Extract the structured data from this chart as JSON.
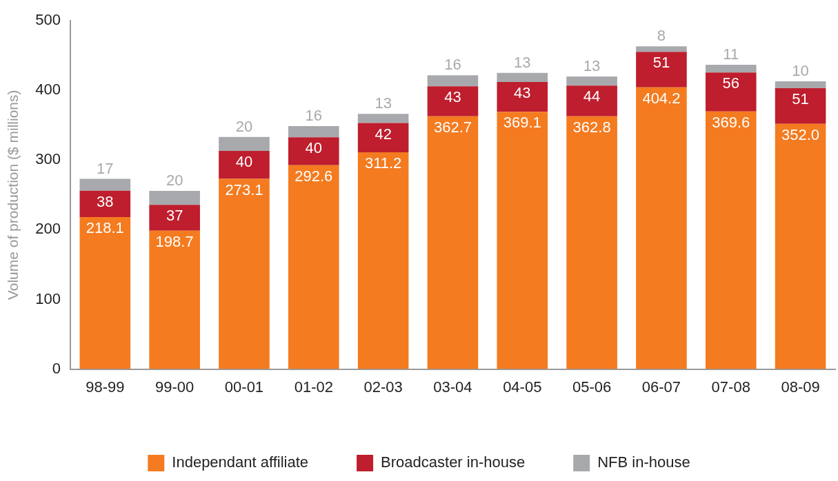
{
  "chart_data": {
    "type": "bar",
    "stacked": true,
    "ylabel": "Volume of production ($ millions)",
    "categories": [
      "98-99",
      "99-00",
      "00-01",
      "01-02",
      "02-03",
      "03-04",
      "04-05",
      "05-06",
      "06-07",
      "07-08",
      "08-09"
    ],
    "series": [
      {
        "name": "Independant affiliate",
        "color": "#f47b20",
        "values": [
          218.1,
          198.7,
          273.1,
          292.6,
          311.2,
          362.7,
          369.1,
          362.8,
          404.2,
          369.6,
          352.0
        ],
        "value_labels": [
          "218.1",
          "198.7",
          "273.1",
          "292.6",
          "311.2",
          "362.7",
          "369.1",
          "362.8",
          "404.2",
          "369.6",
          "352.0"
        ]
      },
      {
        "name": "Broadcaster in-house",
        "color": "#be1e2d",
        "values": [
          38,
          37,
          40,
          40,
          42,
          43,
          43,
          44,
          51,
          56,
          51
        ],
        "value_labels": [
          "38",
          "37",
          "40",
          "40",
          "42",
          "43",
          "43",
          "44",
          "51",
          "56",
          "51"
        ]
      },
      {
        "name": "NFB in-house",
        "color": "#a7a9ac",
        "values": [
          17,
          20,
          20,
          16,
          13,
          16,
          13,
          13,
          8,
          11,
          10
        ],
        "value_labels": [
          "17",
          "20",
          "20",
          "16",
          "13",
          "16",
          "13",
          "13",
          "8",
          "11",
          "10"
        ]
      }
    ],
    "ylim": [
      0,
      500
    ],
    "yticks": [
      0,
      100,
      200,
      300,
      400,
      500
    ],
    "grid": false,
    "legend": "bottom"
  }
}
